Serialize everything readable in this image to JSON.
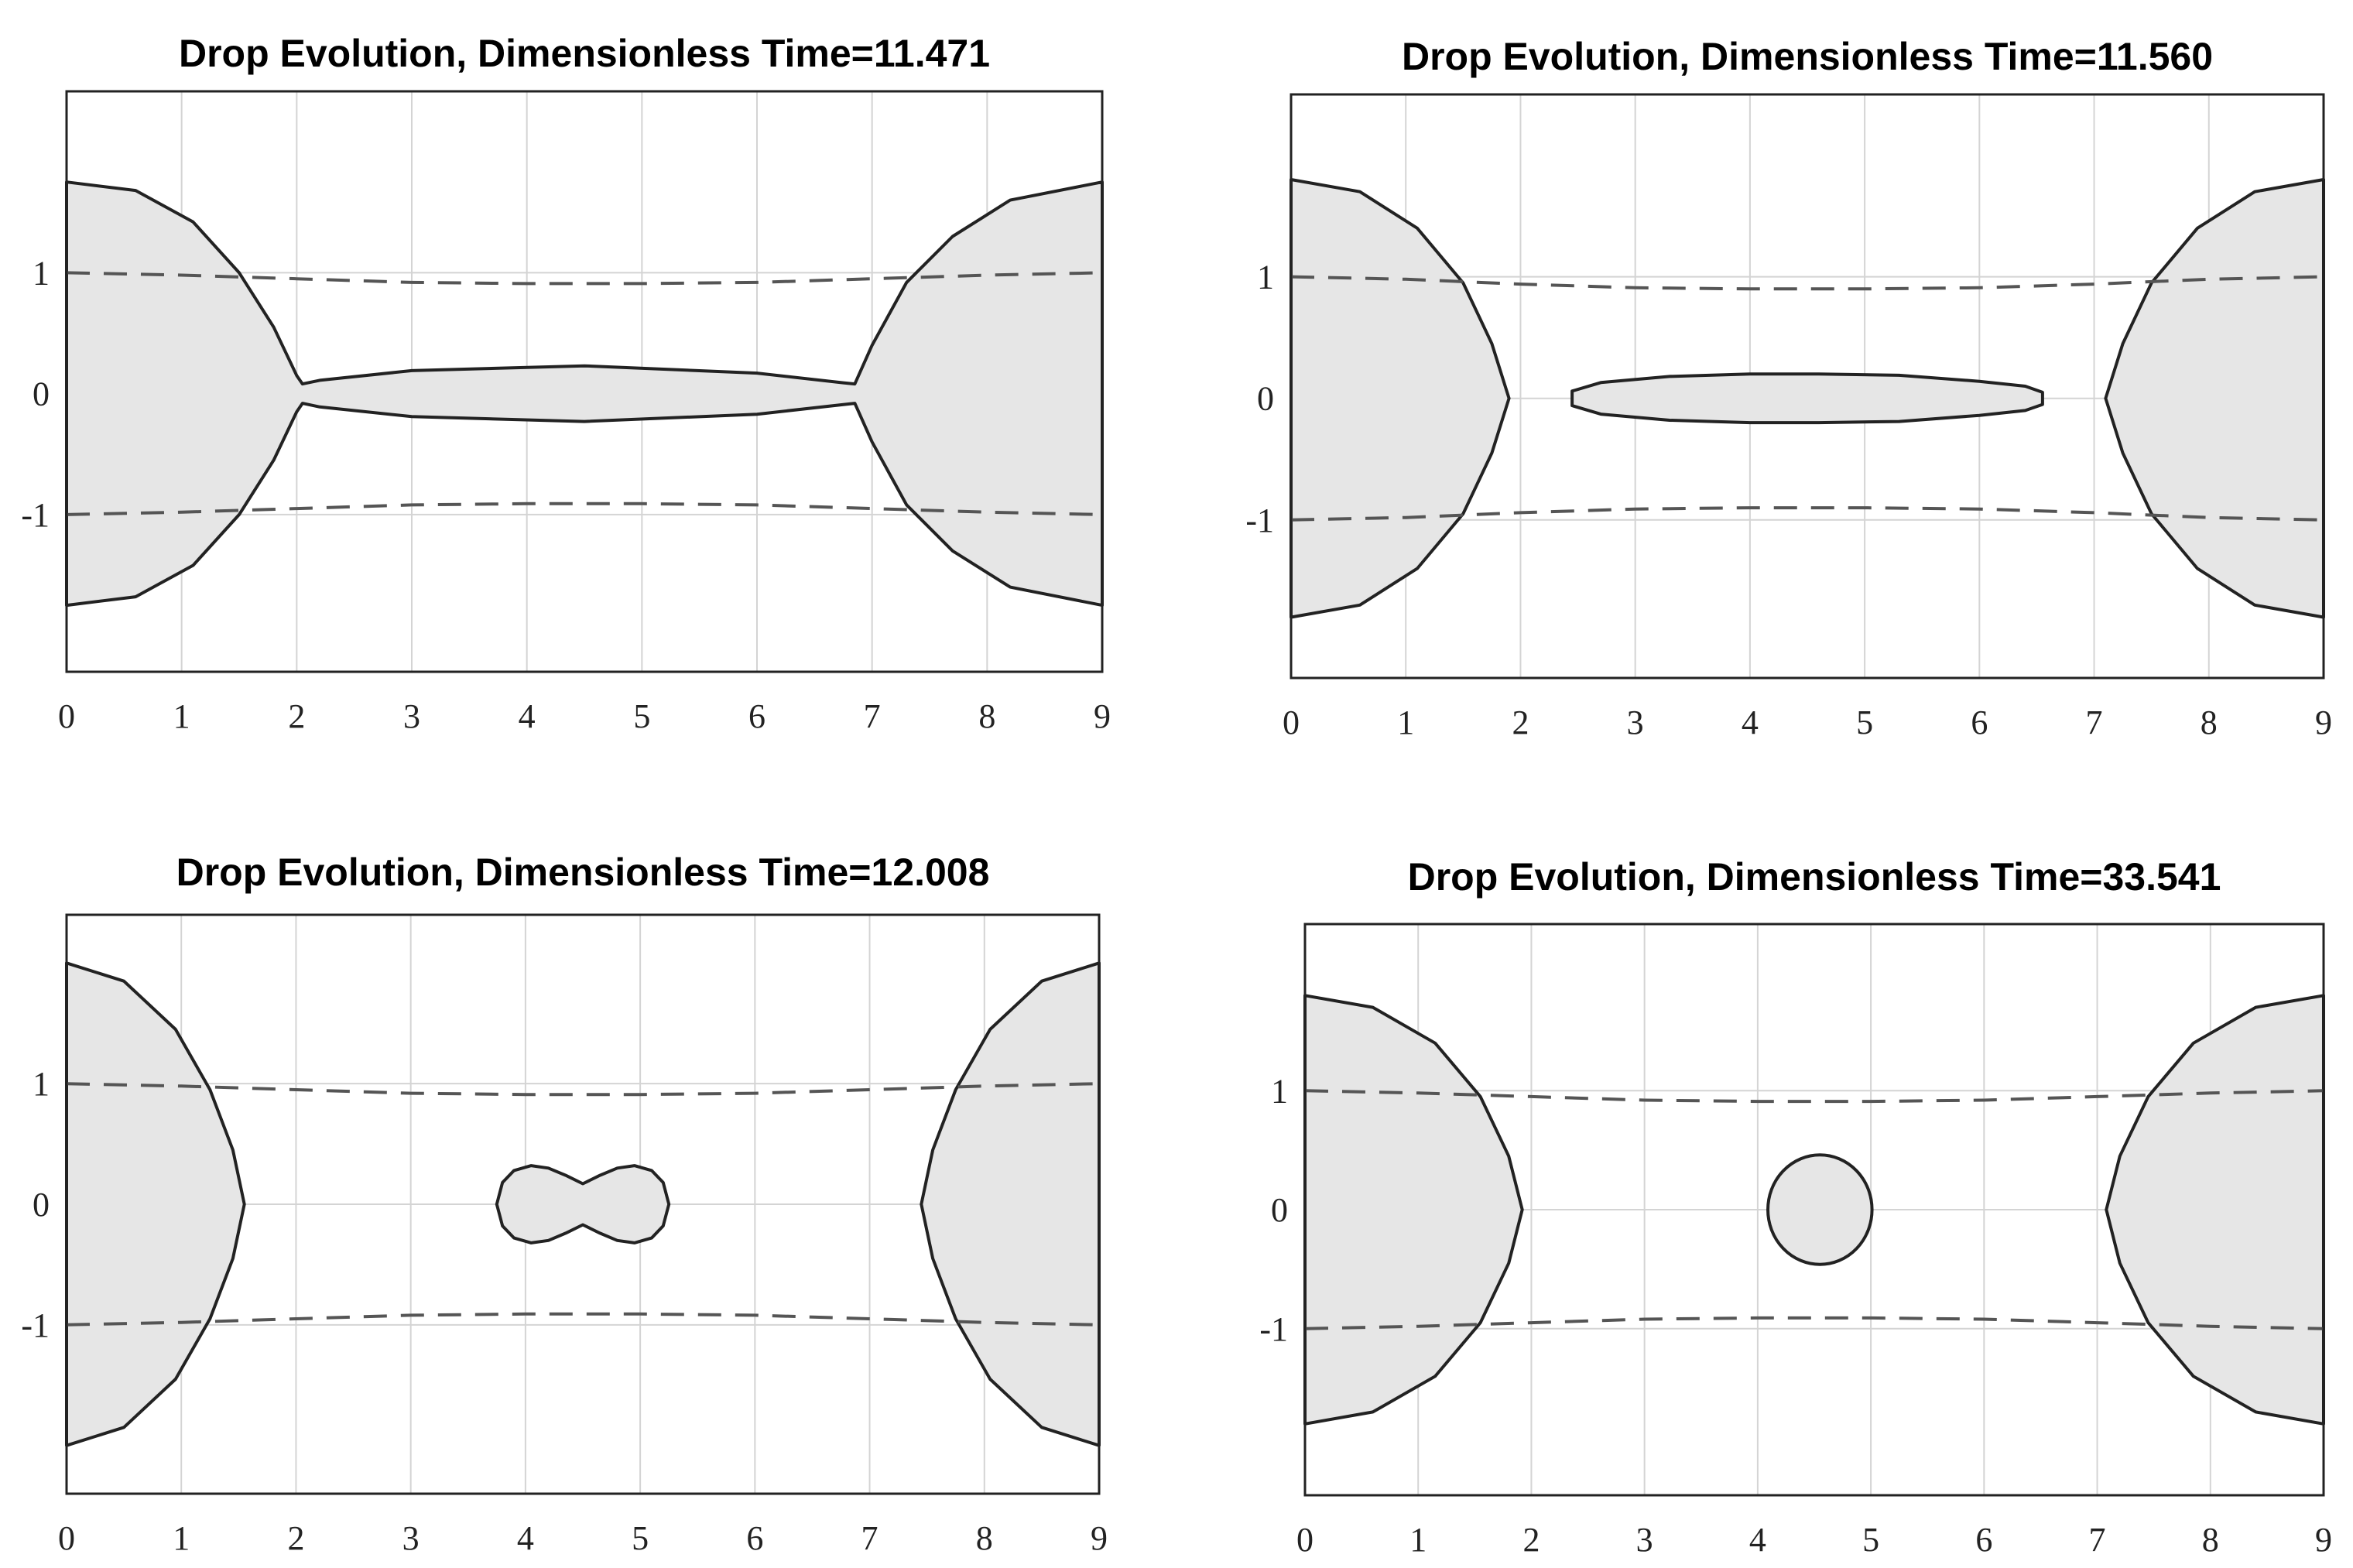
{
  "chart_data": [
    {
      "type": "line",
      "title": "Drop Evolution, Dimensionless Time=11.471",
      "xlabel": "",
      "ylabel": "",
      "xlim": [
        0,
        9
      ],
      "ylim": [
        -2.3,
        2.5
      ],
      "xticks": [
        0,
        1,
        2,
        3,
        4,
        5,
        6,
        7,
        8,
        9
      ],
      "yticks": [
        -1,
        0,
        1
      ],
      "grid": true,
      "boundary_series": [
        {
          "name": "upper dashed",
          "x": [
            0,
            1,
            2,
            3,
            4,
            5,
            6,
            7,
            8,
            9
          ],
          "y": [
            1.0,
            0.98,
            0.95,
            0.92,
            0.91,
            0.91,
            0.92,
            0.95,
            0.98,
            1.0
          ]
        },
        {
          "name": "lower dashed",
          "x": [
            0,
            1,
            2,
            3,
            4,
            5,
            6,
            7,
            8,
            9
          ],
          "y": [
            -1.0,
            -0.98,
            -0.95,
            -0.92,
            -0.91,
            -0.91,
            -0.92,
            -0.95,
            -0.98,
            -1.0
          ]
        }
      ],
      "drops": [
        {
          "name": "left drop",
          "x": [
            0,
            0.6,
            1.1,
            1.5,
            1.8,
            2.0,
            2.05,
            2.2,
            3.0,
            4.5,
            6.0,
            6.75,
            6.85,
            7.0,
            7.3,
            7.7,
            8.2,
            9.0,
            9.0,
            8.2,
            7.7,
            7.3,
            7.0,
            6.85,
            6.75,
            6.0,
            4.5,
            3.0,
            2.2,
            2.05,
            2.0,
            1.8,
            1.5,
            1.1,
            0.6,
            0
          ],
          "y": [
            1.75,
            1.68,
            1.42,
            1.0,
            0.55,
            0.15,
            0.08,
            0.11,
            0.19,
            0.23,
            0.17,
            0.09,
            0.08,
            0.4,
            0.92,
            1.3,
            1.6,
            1.75,
            -1.75,
            -1.6,
            -1.3,
            -0.92,
            -0.4,
            -0.08,
            -0.09,
            -0.17,
            -0.23,
            -0.19,
            -0.11,
            -0.08,
            -0.15,
            -0.55,
            -1.0,
            -1.42,
            -1.68,
            -1.75
          ]
        }
      ]
    },
    {
      "type": "line",
      "title": "Drop Evolution, Dimensionless Time=11.560",
      "xlabel": "",
      "ylabel": "",
      "xlim": [
        0,
        9
      ],
      "ylim": [
        -2.3,
        2.5
      ],
      "xticks": [
        0,
        1,
        2,
        3,
        4,
        5,
        6,
        7,
        8,
        9
      ],
      "yticks": [
        -1,
        0,
        1
      ],
      "grid": true,
      "boundary_series": [
        {
          "name": "upper dashed",
          "x": [
            0,
            1,
            2,
            3,
            4,
            5,
            6,
            7,
            8,
            9
          ],
          "y": [
            1.0,
            0.98,
            0.94,
            0.91,
            0.9,
            0.9,
            0.91,
            0.94,
            0.98,
            1.0
          ]
        },
        {
          "name": "lower dashed",
          "x": [
            0,
            1,
            2,
            3,
            4,
            5,
            6,
            7,
            8,
            9
          ],
          "y": [
            -1.0,
            -0.98,
            -0.94,
            -0.91,
            -0.9,
            -0.9,
            -0.91,
            -0.94,
            -0.98,
            -1.0
          ]
        }
      ],
      "drops": [
        {
          "name": "left drop",
          "x": [
            0,
            0.6,
            1.1,
            1.5,
            1.75,
            1.9,
            1.9,
            1.75,
            1.5,
            1.1,
            0.6,
            0
          ],
          "y": [
            1.8,
            1.7,
            1.4,
            0.95,
            0.45,
            0.0,
            -0.0,
            -0.45,
            -0.95,
            -1.4,
            -1.7,
            -1.8
          ]
        },
        {
          "name": "right drop",
          "x": [
            9,
            8.4,
            7.9,
            7.5,
            7.25,
            7.1,
            7.1,
            7.25,
            7.5,
            7.9,
            8.4,
            9
          ],
          "y": [
            1.8,
            1.7,
            1.4,
            0.95,
            0.45,
            0.0,
            -0.0,
            -0.45,
            -0.95,
            -1.4,
            -1.7,
            -1.8
          ]
        },
        {
          "name": "elongated drop",
          "x": [
            2.45,
            2.7,
            3.3,
            4.0,
            4.6,
            5.3,
            6.0,
            6.4,
            6.55,
            6.55,
            6.4,
            6.0,
            5.3,
            4.6,
            4.0,
            3.3,
            2.7,
            2.45
          ],
          "y": [
            0.06,
            0.13,
            0.18,
            0.2,
            0.2,
            0.19,
            0.14,
            0.1,
            0.05,
            -0.05,
            -0.1,
            -0.14,
            -0.19,
            -0.2,
            -0.2,
            -0.18,
            -0.13,
            -0.06
          ]
        }
      ]
    },
    {
      "type": "line",
      "title": "Drop Evolution, Dimensionless Time=12.008",
      "xlabel": "",
      "ylabel": "",
      "xlim": [
        0,
        9
      ],
      "ylim": [
        -2.4,
        2.4
      ],
      "xticks": [
        0,
        1,
        2,
        3,
        4,
        5,
        6,
        7,
        8,
        9
      ],
      "yticks": [
        -1,
        0,
        1
      ],
      "grid": true,
      "boundary_series": [
        {
          "name": "upper dashed",
          "x": [
            0,
            1,
            2,
            3,
            4,
            5,
            6,
            7,
            8,
            9
          ],
          "y": [
            1.0,
            0.98,
            0.95,
            0.92,
            0.91,
            0.91,
            0.92,
            0.95,
            0.98,
            1.0
          ]
        },
        {
          "name": "lower dashed",
          "x": [
            0,
            1,
            2,
            3,
            4,
            5,
            6,
            7,
            8,
            9
          ],
          "y": [
            -1.0,
            -0.98,
            -0.95,
            -0.92,
            -0.91,
            -0.91,
            -0.92,
            -0.95,
            -0.98,
            -1.0
          ]
        }
      ],
      "drops": [
        {
          "name": "left drop",
          "x": [
            0,
            0.5,
            0.95,
            1.25,
            1.45,
            1.55,
            1.55,
            1.45,
            1.25,
            0.95,
            0.5,
            0
          ],
          "y": [
            2.0,
            1.85,
            1.45,
            0.95,
            0.45,
            0.0,
            -0.0,
            -0.45,
            -0.95,
            -1.45,
            -1.85,
            -2.0
          ]
        },
        {
          "name": "right drop",
          "x": [
            9,
            8.5,
            8.05,
            7.75,
            7.55,
            7.45,
            7.45,
            7.55,
            7.75,
            8.05,
            8.5,
            9
          ],
          "y": [
            2.0,
            1.85,
            1.45,
            0.95,
            0.45,
            0.0,
            -0.0,
            -0.45,
            -0.95,
            -1.45,
            -1.85,
            -2.0
          ]
        },
        {
          "name": "dumbbell drop",
          "x": [
            3.75,
            3.8,
            3.9,
            4.05,
            4.2,
            4.35,
            4.5,
            4.65,
            4.8,
            4.95,
            5.1,
            5.2,
            5.25,
            5.2,
            5.1,
            4.95,
            4.8,
            4.65,
            4.5,
            4.35,
            4.2,
            4.05,
            3.9,
            3.8,
            3.75
          ],
          "y": [
            0.0,
            0.18,
            0.28,
            0.32,
            0.3,
            0.24,
            0.17,
            0.24,
            0.3,
            0.32,
            0.28,
            0.18,
            0.0,
            -0.18,
            -0.28,
            -0.32,
            -0.3,
            -0.24,
            -0.17,
            -0.24,
            -0.3,
            -0.32,
            -0.28,
            -0.18,
            0.0
          ]
        }
      ]
    },
    {
      "type": "line",
      "title": "Drop Evolution, Dimensionless Time=33.541",
      "xlabel": "",
      "ylabel": "",
      "xlim": [
        0,
        9
      ],
      "ylim": [
        -2.4,
        2.4
      ],
      "xticks": [
        0,
        1,
        2,
        3,
        4,
        5,
        6,
        7,
        8,
        9
      ],
      "yticks": [
        -1,
        0,
        1
      ],
      "grid": true,
      "boundary_series": [
        {
          "name": "upper dashed",
          "x": [
            0,
            1,
            2,
            3,
            4,
            5,
            6,
            7,
            8,
            9
          ],
          "y": [
            1.0,
            0.98,
            0.95,
            0.92,
            0.91,
            0.91,
            0.92,
            0.95,
            0.98,
            1.0
          ]
        },
        {
          "name": "lower dashed",
          "x": [
            0,
            1,
            2,
            3,
            4,
            5,
            6,
            7,
            8,
            9
          ],
          "y": [
            -1.0,
            -0.98,
            -0.95,
            -0.92,
            -0.91,
            -0.91,
            -0.92,
            -0.95,
            -0.98,
            -1.0
          ]
        }
      ],
      "drops": [
        {
          "name": "left drop",
          "x": [
            0,
            0.6,
            1.15,
            1.55,
            1.8,
            1.92,
            1.92,
            1.8,
            1.55,
            1.15,
            0.6,
            0
          ],
          "y": [
            1.8,
            1.7,
            1.4,
            0.95,
            0.45,
            0.0,
            -0.0,
            -0.45,
            -0.95,
            -1.4,
            -1.7,
            -1.8
          ]
        },
        {
          "name": "right drop",
          "x": [
            9,
            8.4,
            7.85,
            7.45,
            7.2,
            7.08,
            7.08,
            7.2,
            7.45,
            7.85,
            8.4,
            9
          ],
          "y": [
            1.8,
            1.7,
            1.4,
            0.95,
            0.45,
            0.0,
            -0.0,
            -0.45,
            -0.95,
            -1.4,
            -1.7,
            -1.8
          ]
        },
        {
          "name": "spherical drop",
          "shape": "circle",
          "cx": 4.55,
          "cy": 0.0,
          "r": 0.46
        }
      ]
    }
  ]
}
